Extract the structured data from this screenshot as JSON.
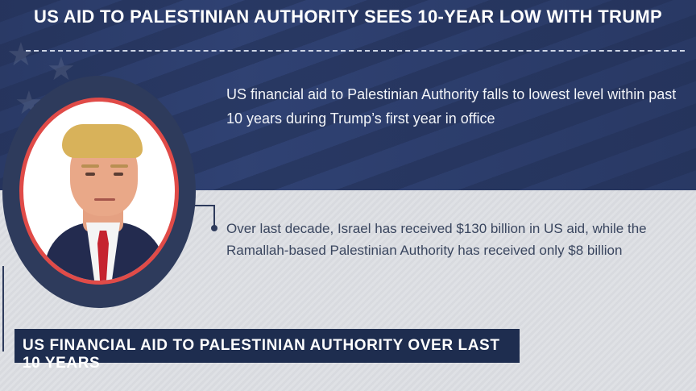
{
  "header": {
    "title": "US AID TO PALESTINIAN AUTHORITY SEES 10-YEAR LOW WITH TRUMP"
  },
  "facts": {
    "top": "US financial aid to Palestinian Authority falls to lowest level within past 10 years during Trump’s first year in office",
    "bottom": "Over last decade, Israel has received $130 billion in US aid, while  the Ramallah-based Palestinian Authority has received only $8 billion"
  },
  "section": {
    "label": "US FINANCIAL AID TO PALESTINIAN AUTHORITY OVER LAST 10 YEARS"
  },
  "colors": {
    "navy": "#2e3b5c",
    "accent_red": "#e04b48",
    "label_bg": "#1e2d4f"
  }
}
